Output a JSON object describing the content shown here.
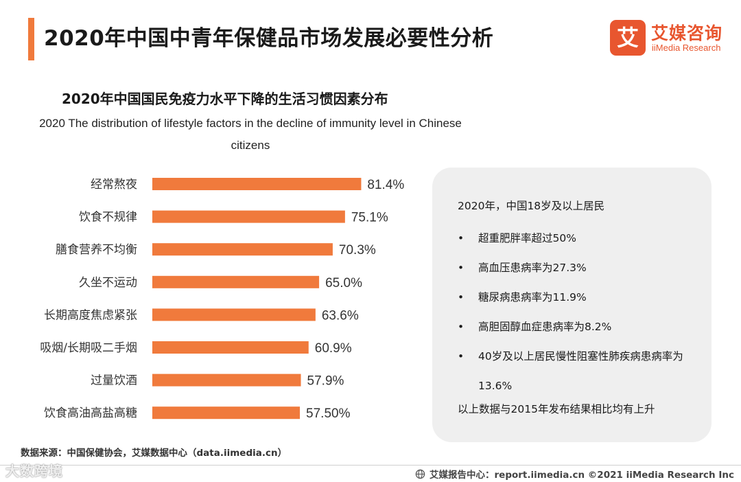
{
  "header": {
    "title": "2020年中国中青年保健品市场发展必要性分析",
    "logo_cn": "艾媒咨询",
    "logo_en": "iiMedia Research",
    "logo_mark": "艾"
  },
  "colors": {
    "accent": "#f07a3c",
    "bar": "#f07a3c",
    "brand": "#e8562f",
    "panel_bg": "#efefef"
  },
  "chart_data": {
    "type": "bar",
    "orientation": "horizontal",
    "title": "2020年中国国民免疫力水平下降的生活习惯因素分布",
    "subtitle": "2020 The distribution of lifestyle factors in the decline of immunity level in Chinese citizens",
    "categories": [
      "经常熬夜",
      "饮食不规律",
      "膳食营养不均衡",
      "久坐不运动",
      "长期高度焦虑紧张",
      "吸烟/长期吸二手烟",
      "过量饮酒",
      "饮食高油高盐高糖"
    ],
    "values": [
      81.4,
      75.1,
      70.3,
      65.0,
      63.6,
      60.9,
      57.9,
      57.5
    ],
    "data_labels": [
      "81.4%",
      "75.1%",
      "70.3%",
      "65.0%",
      "63.6%",
      "60.9%",
      "57.9%",
      "57.50%"
    ],
    "xlim": [
      0,
      100
    ],
    "grid": false,
    "legend": "none"
  },
  "panel": {
    "intro": "2020年，中国18岁及以上居民",
    "items": [
      "超重肥胖率超过50%",
      "高血压患病率为27.3%",
      "糖尿病患病率为11.9%",
      "高胆固醇血症患病率为8.2%",
      "40岁及以上居民慢性阻塞性肺疾病患病率为13.6%"
    ],
    "note": "以上数据与2015年发布结果相比均有上升"
  },
  "footer": {
    "source": "数据来源：中国保健协会，艾媒数据中心（data.iimedia.cn）",
    "report": "艾媒报告中心：report.iimedia.cn  ©2021  iiMedia Research  Inc",
    "watermark": "大数跨境"
  }
}
